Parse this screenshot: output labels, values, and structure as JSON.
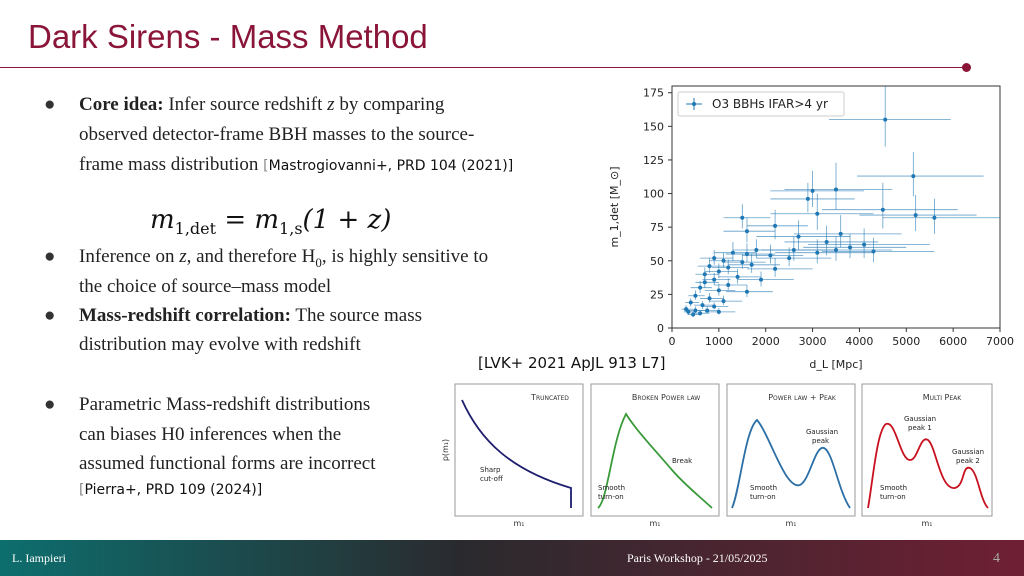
{
  "slide": {
    "title": "Dark Sirens - Mass Method",
    "page_number": "4"
  },
  "body": {
    "b1_label": "Core idea:",
    "b1_l1": "Infer source redshift",
    "b1_z": "z",
    "b1_l1b": "by comparing",
    "b1_l2": "observed detector-frame BBH masses to the source-",
    "b1_l3": "frame mass distribution",
    "b1_ref_open": "[",
    "b1_ref": "Mastrogiovanni+, PRD 104 (2021)]",
    "formula_lhs": "m",
    "formula_lhs_sub": "1,det",
    "formula_eq": " = ",
    "formula_rhs": "m",
    "formula_rhs_sub": "1,s",
    "formula_tail": "(1 + z)",
    "b2_l1a": "Inference on",
    "b2_z": "z",
    "b2_l1b": ", and therefore H",
    "b2_sub": "0",
    "b2_l1c": ", is highly sensitive to",
    "b2_l2": "the choice of source–mass model",
    "b3_label": "Mass-redshift correlation:",
    "b3_l1": "The source mass",
    "b3_l2": "distribution may evolve with redshift",
    "b4_l1": "Parametric Mass-redshift distributions",
    "b4_l2": "can biases H0 inferences when the",
    "b4_l3": " assumed functional forms are incorrect",
    "b4_ref_open": "[",
    "b4_ref": "Pierra+, PRD 109 (2024)]"
  },
  "plot_caption": "[LVK+ 2021 ApJL 913 L7]",
  "chart_data": {
    "type": "scatter",
    "legend": "O3 BBHs IFAR>4 yr",
    "legend_position": "top-left",
    "xlabel": "d_L [Mpc]",
    "ylabel": "m_1,det [M_⊙]",
    "xlim": [
      0,
      7000
    ],
    "ylim": [
      0,
      180
    ],
    "xticks": [
      0,
      1000,
      2000,
      3000,
      4000,
      5000,
      6000,
      7000
    ],
    "yticks": [
      0,
      25,
      50,
      75,
      100,
      125,
      150,
      175
    ],
    "color": "#1f77b4",
    "points": [
      {
        "x": 4550,
        "y": 155,
        "xerr": [
          1200,
          1400
        ],
        "yerr": [
          20,
          25
        ]
      },
      {
        "x": 5150,
        "y": 113,
        "xerr": [
          1200,
          1500
        ],
        "yerr": [
          15,
          18
        ]
      },
      {
        "x": 3500,
        "y": 103,
        "xerr": [
          1100,
          1200
        ],
        "yerr": [
          15,
          20
        ]
      },
      {
        "x": 3000,
        "y": 102,
        "xerr": [
          900,
          1100
        ],
        "yerr": [
          12,
          15
        ]
      },
      {
        "x": 2900,
        "y": 96,
        "xerr": [
          800,
          1000
        ],
        "yerr": [
          10,
          12
        ]
      },
      {
        "x": 4500,
        "y": 88,
        "xerr": [
          1300,
          1600
        ],
        "yerr": [
          14,
          20
        ]
      },
      {
        "x": 3100,
        "y": 85,
        "xerr": [
          1000,
          1200
        ],
        "yerr": [
          12,
          15
        ]
      },
      {
        "x": 5200,
        "y": 84,
        "xerr": [
          1200,
          1300
        ],
        "yerr": [
          12,
          15
        ]
      },
      {
        "x": 5600,
        "y": 82,
        "xerr": [
          1100,
          1400
        ],
        "yerr": [
          12,
          14
        ]
      },
      {
        "x": 1500,
        "y": 82,
        "xerr": [
          400,
          600
        ],
        "yerr": [
          8,
          10
        ]
      },
      {
        "x": 2200,
        "y": 76,
        "xerr": [
          600,
          700
        ],
        "yerr": [
          10,
          12
        ]
      },
      {
        "x": 1600,
        "y": 72,
        "xerr": [
          500,
          600
        ],
        "yerr": [
          8,
          10
        ]
      },
      {
        "x": 3600,
        "y": 70,
        "xerr": [
          1000,
          1300
        ],
        "yerr": [
          10,
          14
        ]
      },
      {
        "x": 2700,
        "y": 68,
        "xerr": [
          900,
          1100
        ],
        "yerr": [
          10,
          12
        ]
      },
      {
        "x": 3300,
        "y": 64,
        "xerr": [
          900,
          1100
        ],
        "yerr": [
          10,
          12
        ]
      },
      {
        "x": 4100,
        "y": 62,
        "xerr": [
          1200,
          1400
        ],
        "yerr": [
          10,
          12
        ]
      },
      {
        "x": 3800,
        "y": 60,
        "xerr": [
          1000,
          1200
        ],
        "yerr": [
          8,
          10
        ]
      },
      {
        "x": 3500,
        "y": 58,
        "xerr": [
          1000,
          1200
        ],
        "yerr": [
          8,
          10
        ]
      },
      {
        "x": 4300,
        "y": 57,
        "xerr": [
          1100,
          1300
        ],
        "yerr": [
          8,
          10
        ]
      },
      {
        "x": 3100,
        "y": 56,
        "xerr": [
          900,
          1200
        ],
        "yerr": [
          8,
          10
        ]
      },
      {
        "x": 2600,
        "y": 58,
        "xerr": [
          700,
          900
        ],
        "yerr": [
          8,
          10
        ]
      },
      {
        "x": 1800,
        "y": 58,
        "xerr": [
          500,
          700
        ],
        "yerr": [
          6,
          8
        ]
      },
      {
        "x": 1300,
        "y": 56,
        "xerr": [
          400,
          500
        ],
        "yerr": [
          6,
          8
        ]
      },
      {
        "x": 1600,
        "y": 55,
        "xerr": [
          450,
          600
        ],
        "yerr": [
          6,
          8
        ]
      },
      {
        "x": 2100,
        "y": 54,
        "xerr": [
          600,
          700
        ],
        "yerr": [
          6,
          8
        ]
      },
      {
        "x": 900,
        "y": 52,
        "xerr": [
          300,
          400
        ],
        "yerr": [
          5,
          6
        ]
      },
      {
        "x": 1100,
        "y": 50,
        "xerr": [
          300,
          400
        ],
        "yerr": [
          5,
          6
        ]
      },
      {
        "x": 1500,
        "y": 49,
        "xerr": [
          400,
          500
        ],
        "yerr": [
          5,
          6
        ]
      },
      {
        "x": 2500,
        "y": 52,
        "xerr": [
          700,
          900
        ],
        "yerr": [
          6,
          8
        ]
      },
      {
        "x": 1700,
        "y": 47,
        "xerr": [
          500,
          600
        ],
        "yerr": [
          6,
          8
        ]
      },
      {
        "x": 800,
        "y": 46,
        "xerr": [
          250,
          350
        ],
        "yerr": [
          5,
          6
        ]
      },
      {
        "x": 1200,
        "y": 45,
        "xerr": [
          350,
          450
        ],
        "yerr": [
          5,
          6
        ]
      },
      {
        "x": 2200,
        "y": 44,
        "xerr": [
          600,
          800
        ],
        "yerr": [
          6,
          8
        ]
      },
      {
        "x": 1000,
        "y": 42,
        "xerr": [
          300,
          400
        ],
        "yerr": [
          5,
          6
        ]
      },
      {
        "x": 700,
        "y": 40,
        "xerr": [
          200,
          300
        ],
        "yerr": [
          4,
          5
        ]
      },
      {
        "x": 1400,
        "y": 38,
        "xerr": [
          400,
          500
        ],
        "yerr": [
          5,
          6
        ]
      },
      {
        "x": 900,
        "y": 36,
        "xerr": [
          250,
          350
        ],
        "yerr": [
          4,
          5
        ]
      },
      {
        "x": 1900,
        "y": 36,
        "xerr": [
          500,
          700
        ],
        "yerr": [
          5,
          6
        ]
      },
      {
        "x": 700,
        "y": 34,
        "xerr": [
          200,
          300
        ],
        "yerr": [
          4,
          5
        ]
      },
      {
        "x": 1200,
        "y": 32,
        "xerr": [
          300,
          400
        ],
        "yerr": [
          4,
          5
        ]
      },
      {
        "x": 600,
        "y": 30,
        "xerr": [
          200,
          250
        ],
        "yerr": [
          4,
          5
        ]
      },
      {
        "x": 1000,
        "y": 28,
        "xerr": [
          300,
          350
        ],
        "yerr": [
          4,
          5
        ]
      },
      {
        "x": 1600,
        "y": 27,
        "xerr": [
          450,
          550
        ],
        "yerr": [
          4,
          5
        ]
      },
      {
        "x": 500,
        "y": 24,
        "xerr": [
          150,
          200
        ],
        "yerr": [
          3,
          4
        ]
      },
      {
        "x": 800,
        "y": 22,
        "xerr": [
          200,
          300
        ],
        "yerr": [
          3,
          4
        ]
      },
      {
        "x": 1100,
        "y": 20,
        "xerr": [
          300,
          400
        ],
        "yerr": [
          3,
          4
        ]
      },
      {
        "x": 400,
        "y": 19,
        "xerr": [
          120,
          180
        ],
        "yerr": [
          3,
          3
        ]
      },
      {
        "x": 650,
        "y": 17,
        "xerr": [
          180,
          250
        ],
        "yerr": [
          3,
          3
        ]
      },
      {
        "x": 900,
        "y": 16,
        "xerr": [
          250,
          300
        ],
        "yerr": [
          2,
          3
        ]
      },
      {
        "x": 300,
        "y": 14,
        "xerr": [
          100,
          150
        ],
        "yerr": [
          2,
          3
        ]
      },
      {
        "x": 500,
        "y": 13,
        "xerr": [
          150,
          200
        ],
        "yerr": [
          2,
          3
        ]
      },
      {
        "x": 750,
        "y": 13,
        "xerr": [
          200,
          250
        ],
        "yerr": [
          2,
          3
        ]
      },
      {
        "x": 350,
        "y": 12,
        "xerr": [
          100,
          150
        ],
        "yerr": [
          2,
          2
        ]
      },
      {
        "x": 1000,
        "y": 12,
        "xerr": [
          300,
          350
        ],
        "yerr": [
          2,
          3
        ]
      },
      {
        "x": 600,
        "y": 11,
        "xerr": [
          150,
          200
        ],
        "yerr": [
          2,
          2
        ]
      },
      {
        "x": 450,
        "y": 10,
        "xerr": [
          120,
          180
        ],
        "yerr": [
          2,
          2
        ]
      }
    ]
  },
  "panels": [
    {
      "title": "Truncated",
      "ylabel": "p(m₁)",
      "xlabel": "m₁",
      "ann1": "Sharp",
      "ann2": "cut-off",
      "color": "#1e1e6e"
    },
    {
      "title": "Broken Power law",
      "xlabel": "m₁",
      "ann1": "Smooth",
      "ann2": "turn-on",
      "ann3": "Break",
      "color": "#3a9a3a"
    },
    {
      "title": "Power law + Peak",
      "xlabel": "m₁",
      "ann1": "Smooth",
      "ann2": "turn-on",
      "ann3": "Gaussian",
      "ann4": "peak",
      "color": "#2b6fa6"
    },
    {
      "title": "Multi Peak",
      "xlabel": "m₁",
      "ann1": "Smooth",
      "ann2": "turn-on",
      "ann3": "Gaussian",
      "ann4": "peak 1",
      "ann5": "Gaussian",
      "ann6": "peak 2",
      "color": "#c8101e"
    }
  ],
  "footer": {
    "author": "L. Iampieri",
    "event": "Paris Workshop - 21/05/2025"
  }
}
